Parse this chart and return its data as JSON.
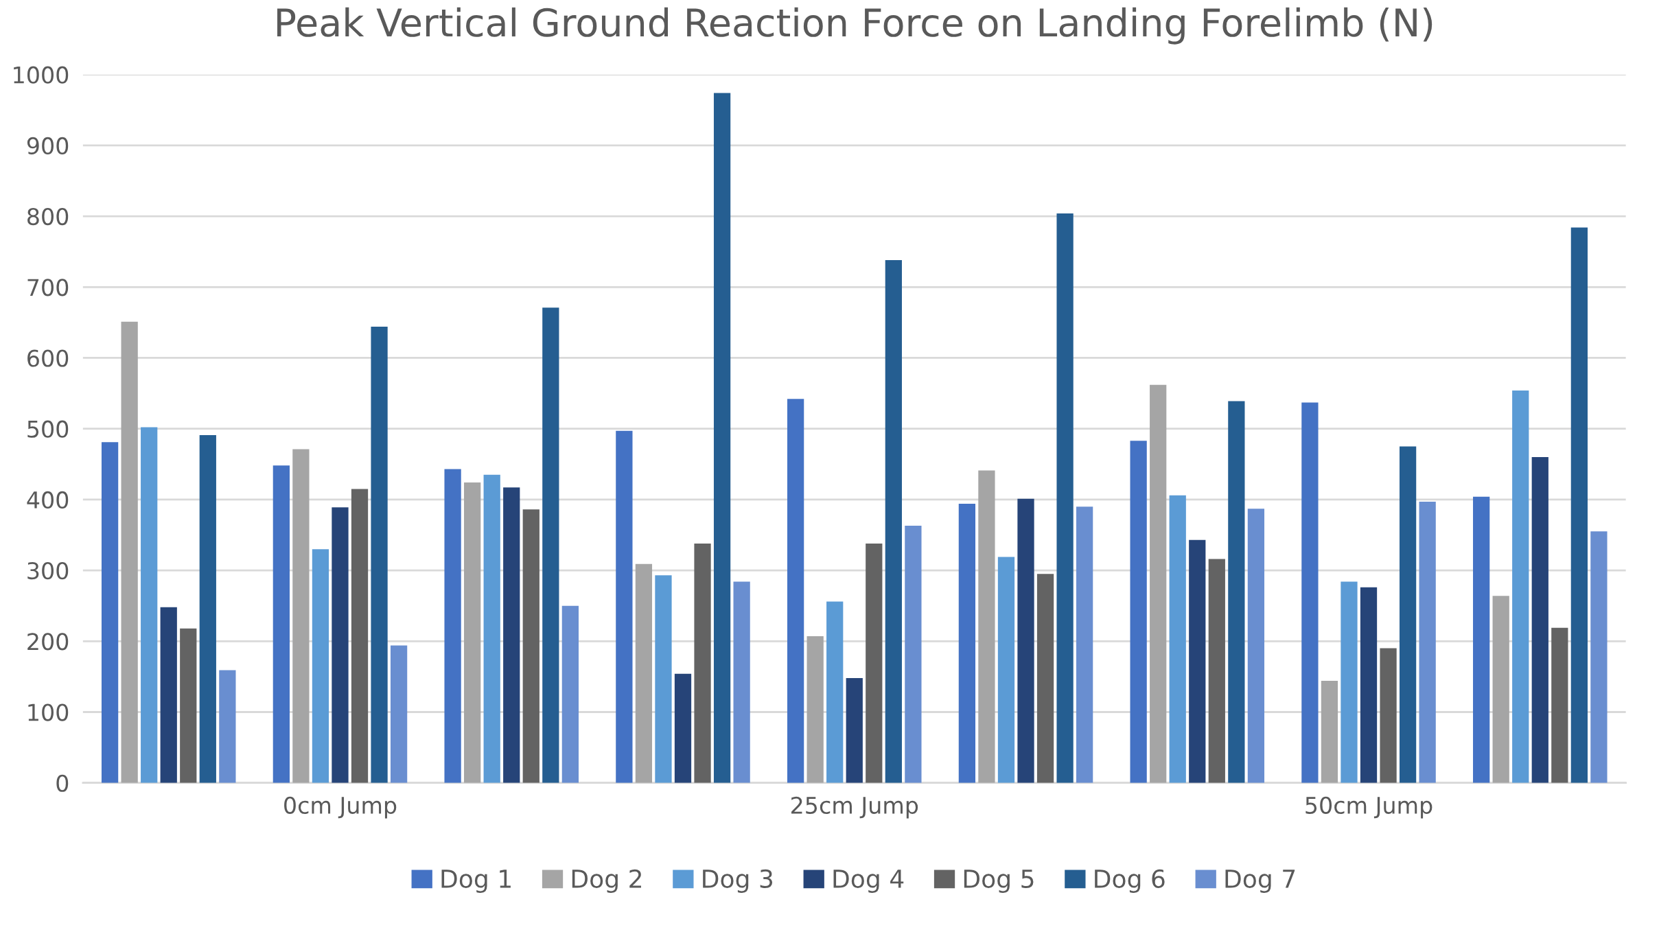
{
  "chart_data": {
    "type": "bar",
    "title": "Peak Vertical Ground Reaction Force on Landing Forelimb (N)",
    "categories": [
      null,
      "0cm Jump",
      null,
      null,
      "25cm Jump",
      null,
      null,
      "50cm Jump",
      null
    ],
    "series": [
      {
        "name": "Dog 1",
        "color": "#4472c4",
        "values": [
          481,
          448,
          443,
          497,
          542,
          394,
          483,
          537,
          404
        ]
      },
      {
        "name": "Dog 2",
        "color": "#a5a5a5",
        "values": [
          651,
          471,
          424,
          309,
          207,
          441,
          562,
          144,
          264
        ]
      },
      {
        "name": "Dog 3",
        "color": "#5b9bd5",
        "values": [
          502,
          330,
          435,
          293,
          256,
          319,
          406,
          284,
          554
        ]
      },
      {
        "name": "Dog 4",
        "color": "#264478",
        "values": [
          248,
          389,
          417,
          154,
          148,
          401,
          343,
          276,
          460
        ]
      },
      {
        "name": "Dog 5",
        "color": "#636363",
        "values": [
          218,
          415,
          386,
          338,
          338,
          295,
          316,
          190,
          219
        ]
      },
      {
        "name": "Dog 6",
        "color": "#255e91",
        "values": [
          491,
          644,
          671,
          974,
          738,
          804,
          539,
          475,
          784
        ]
      },
      {
        "name": "Dog 7",
        "color": "#698ed0",
        "values": [
          159,
          194,
          250,
          284,
          363,
          390,
          387,
          397,
          355
        ]
      }
    ],
    "ylim": [
      0,
      1000
    ],
    "yticks": [
      0,
      100,
      200,
      300,
      400,
      500,
      600,
      700,
      800,
      900,
      1000
    ],
    "grid": "y",
    "legend": "bottom"
  }
}
